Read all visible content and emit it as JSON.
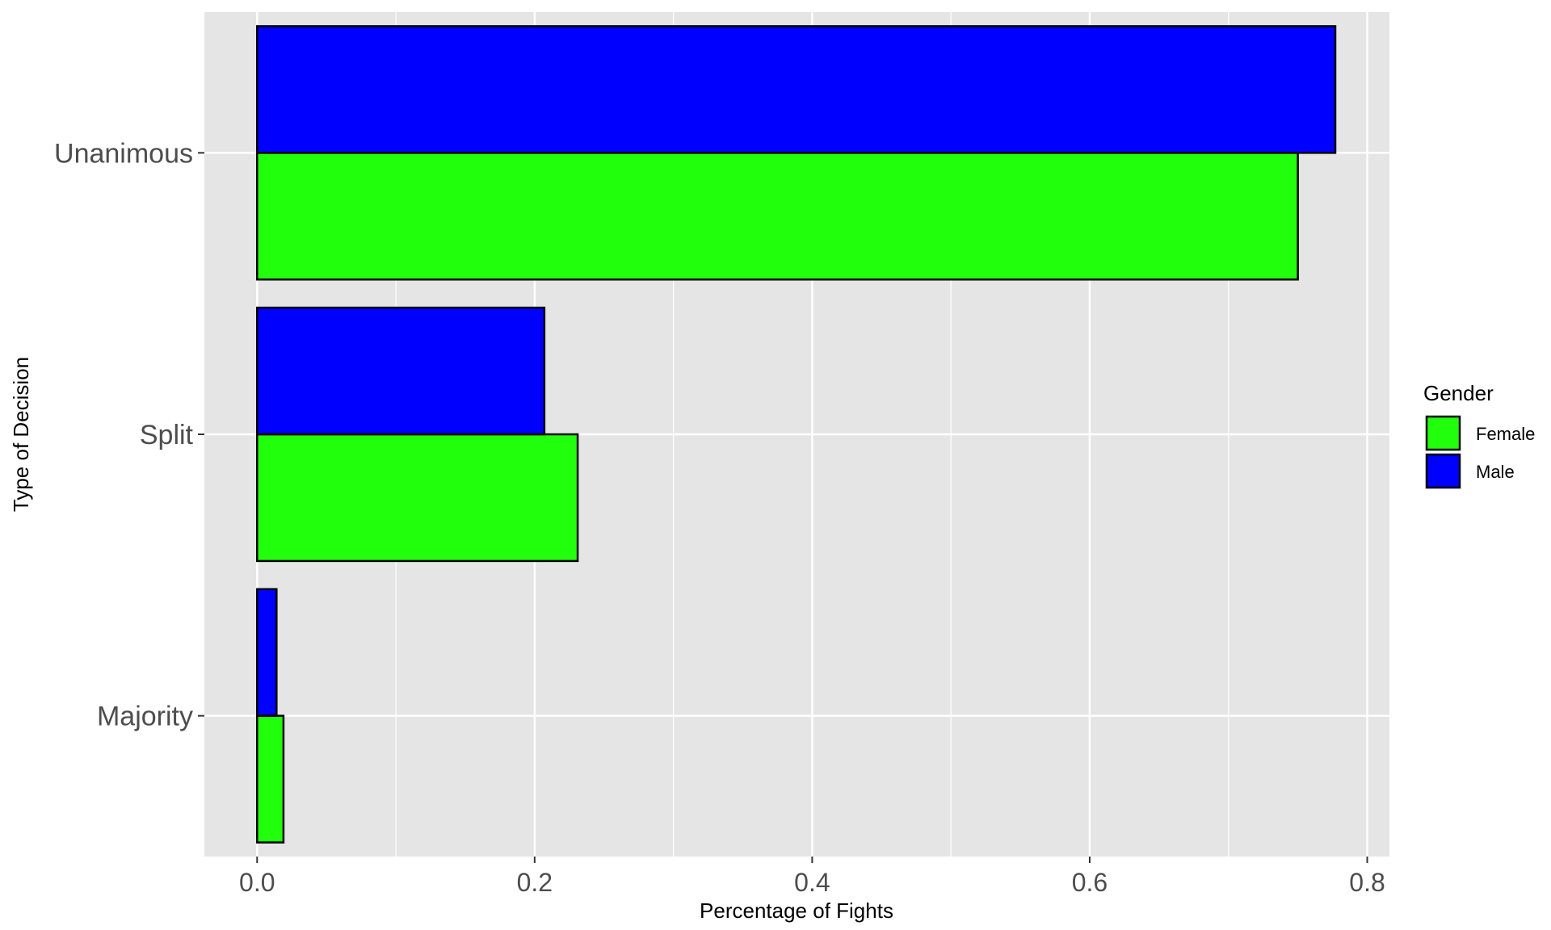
{
  "chart_data": {
    "type": "bar",
    "orientation": "horizontal",
    "title": "",
    "xlabel": "Percentage of Fights",
    "ylabel": "Type of Decision",
    "categories": [
      "Unanimous",
      "Split",
      "Majority"
    ],
    "series": [
      {
        "name": "Female",
        "color": "#22ff0d",
        "values": [
          0.75,
          0.231,
          0.019
        ]
      },
      {
        "name": "Male",
        "color": "#0000ff",
        "values": [
          0.777,
          0.207,
          0.014
        ]
      }
    ],
    "xlim": [
      -0.038,
      0.816
    ],
    "xticks": [
      0.0,
      0.2,
      0.4,
      0.6,
      0.8
    ],
    "xtick_labels": [
      "0.0",
      "0.2",
      "0.4",
      "0.6",
      "0.8"
    ],
    "grid": true,
    "legend": {
      "title": "Gender",
      "placement": "right",
      "items": [
        "Female",
        "Male"
      ]
    },
    "colors": {
      "panel_background": "#e5e5e5",
      "grid_line": "#ffffff",
      "bar_outline": "#000000",
      "tick_text": "#4d4d4d"
    }
  }
}
